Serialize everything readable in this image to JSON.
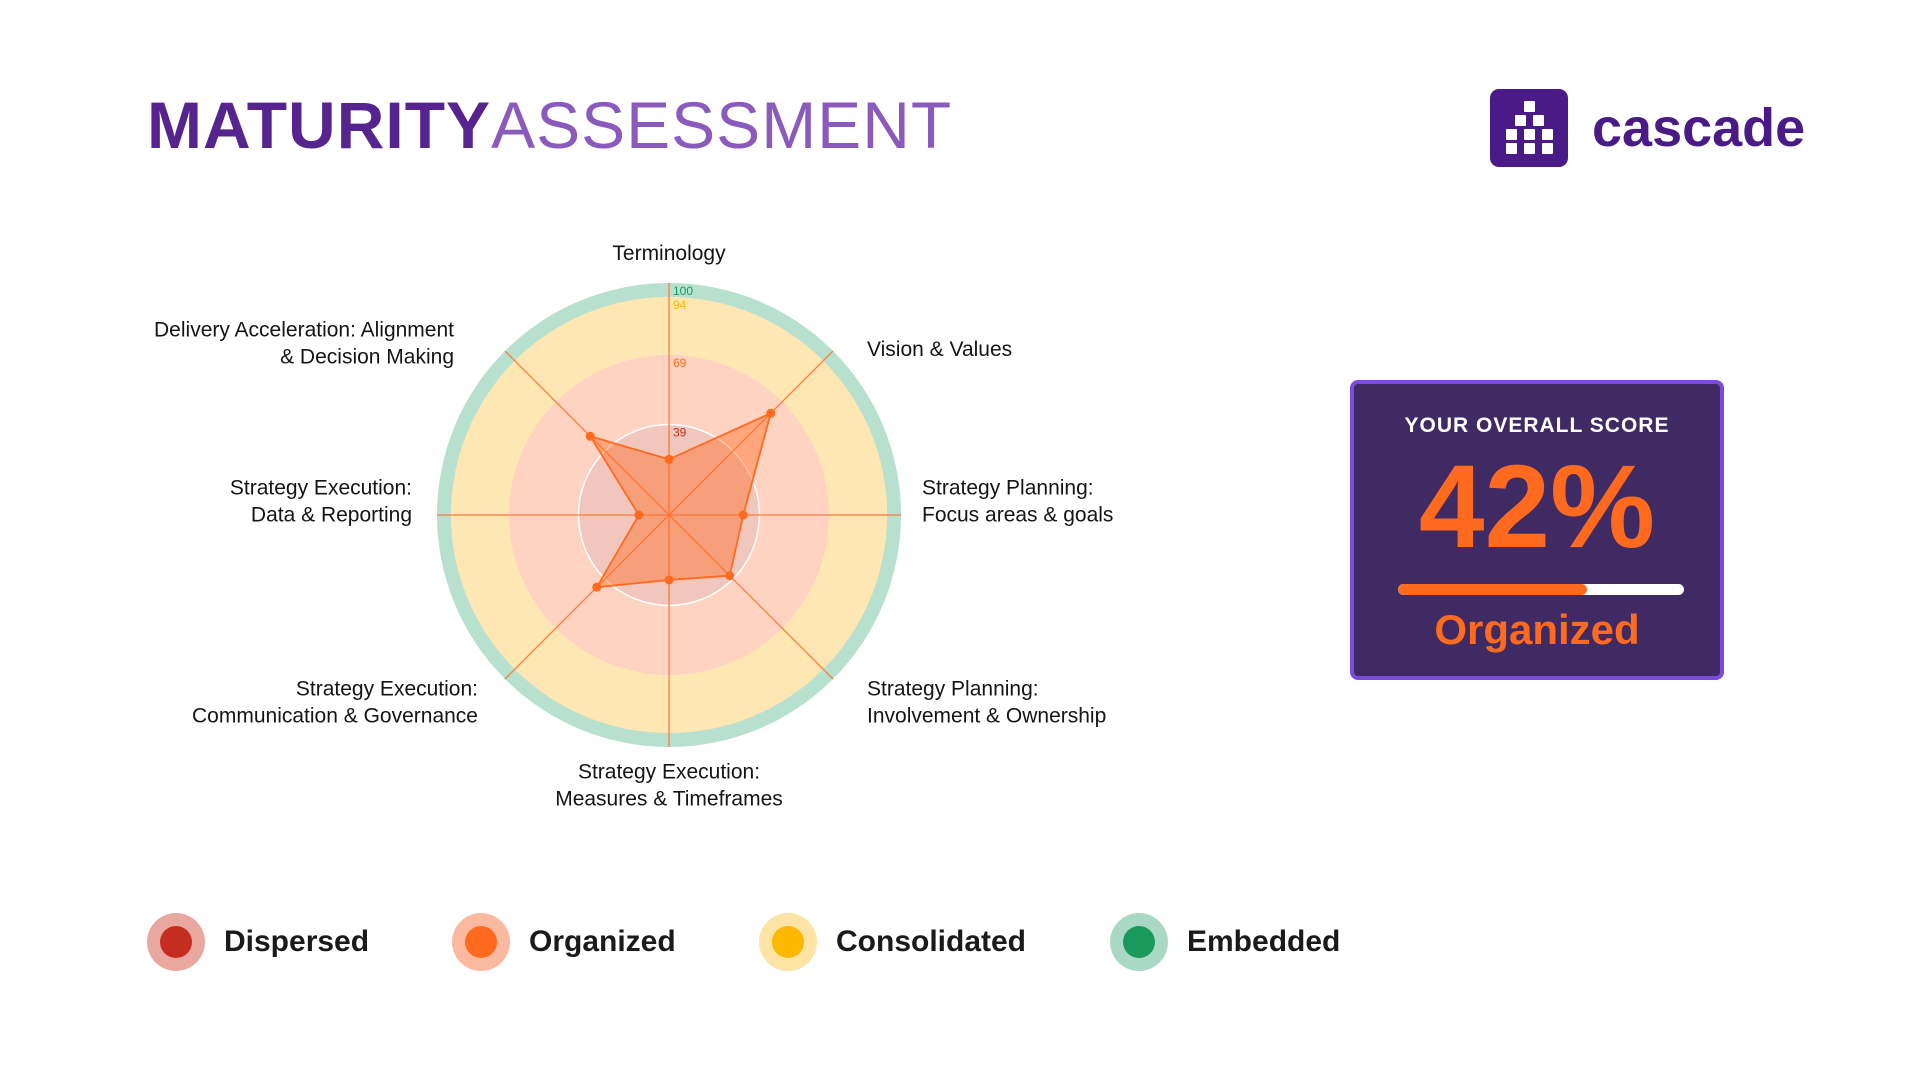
{
  "header": {
    "title_bold": "MATURITY",
    "title_light": "ASSESSMENT",
    "logo_text": "cascade"
  },
  "score": {
    "heading": "YOUR OVERALL SCORE",
    "value": "42%",
    "progress": 0.66,
    "level": "Organized"
  },
  "legend": [
    {
      "label": "Dispersed",
      "outer": "#e8a8a0",
      "inner": "#c42d1f"
    },
    {
      "label": "Organized",
      "outer": "#fbb9a0",
      "inner": "#ff6a1f"
    },
    {
      "label": "Consolidated",
      "outer": "#fde3a4",
      "inner": "#ffb800"
    },
    {
      "label": "Embedded",
      "outer": "#a9d9c4",
      "inner": "#199a5c"
    }
  ],
  "colors": {
    "accent": "#ff6a1f",
    "brand": "#4a1a86",
    "score_bg": "#3f2a63",
    "score_border": "#7c4bdb"
  },
  "chart_data": {
    "type": "radar",
    "max": 100,
    "categories": [
      "Terminology",
      "Vision & Values",
      "Strategy Planning:\nFocus areas & goals",
      "Strategy Planning:\nInvolvement & Ownership",
      "Strategy Execution:\nMeasures & Timeframes",
      "Strategy Execution:\nCommunication & Governance",
      "Strategy Execution:\nData & Reporting",
      "Delivery Acceleration: Alignment\n& Decision Making"
    ],
    "series": [
      {
        "values": [
          24,
          62,
          32,
          37,
          28,
          44,
          13,
          48
        ]
      }
    ],
    "bands": [
      {
        "label": "Dispersed",
        "max": 39,
        "color": "#f1c6bc",
        "label_color": "#c42d1f"
      },
      {
        "label": "Organized",
        "max": 69,
        "color": "#ffd3c2",
        "label_color": "#ff6a1f"
      },
      {
        "label": "Consolidated",
        "max": 94,
        "color": "#ffe7b3",
        "label_color": "#ffb800"
      },
      {
        "label": "Embedded",
        "max": 100,
        "color": "#b7e0cf",
        "label_color": "#199a5c"
      }
    ],
    "ring_labels": [
      "39",
      "69",
      "94",
      "100"
    ]
  }
}
